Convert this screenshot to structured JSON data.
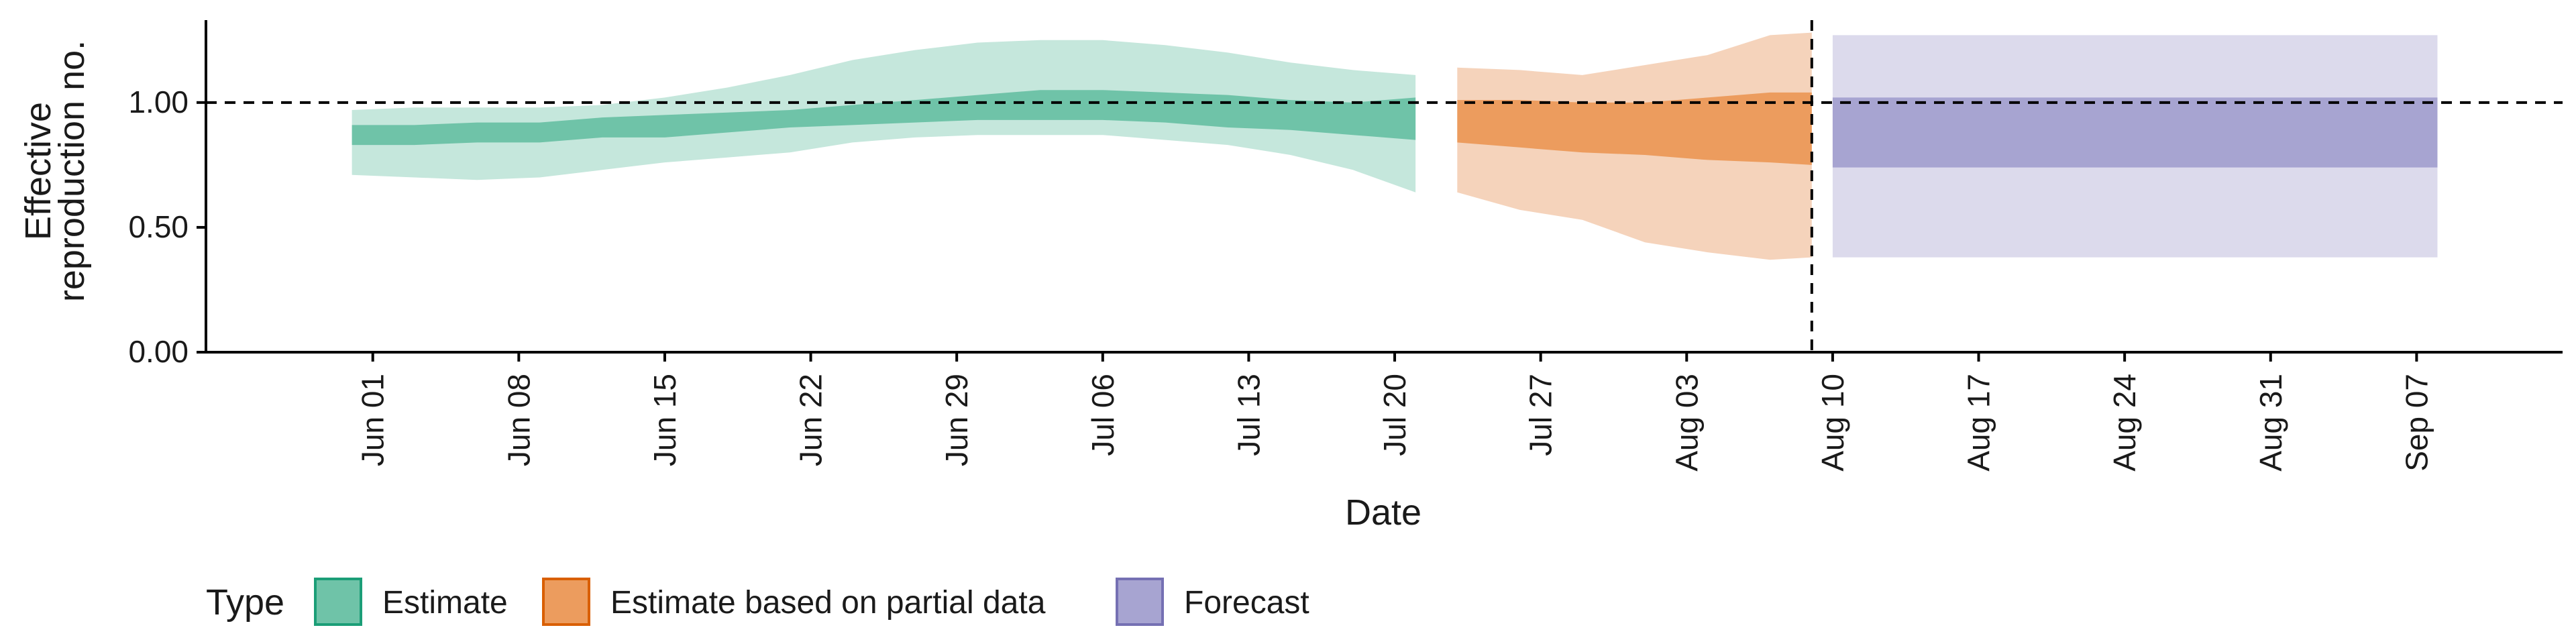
{
  "chart_data": {
    "type": "area",
    "xlabel": "Date",
    "ylabel_lines": [
      "Effective",
      "reproduction no."
    ],
    "ylim": [
      0,
      1.33
    ],
    "xlim": [
      "2020-05-24",
      "2020-09-14"
    ],
    "y_ticks": [
      {
        "value": 0.0,
        "label": "0.00"
      },
      {
        "value": 0.5,
        "label": "0.50"
      },
      {
        "value": 1.0,
        "label": "1.00"
      }
    ],
    "x_ticks": [
      {
        "date": "2020-06-01",
        "label": "Jun 01"
      },
      {
        "date": "2020-06-08",
        "label": "Jun 08"
      },
      {
        "date": "2020-06-15",
        "label": "Jun 15"
      },
      {
        "date": "2020-06-22",
        "label": "Jun 22"
      },
      {
        "date": "2020-06-29",
        "label": "Jun 29"
      },
      {
        "date": "2020-07-06",
        "label": "Jul 06"
      },
      {
        "date": "2020-07-13",
        "label": "Jul 13"
      },
      {
        "date": "2020-07-20",
        "label": "Jul 20"
      },
      {
        "date": "2020-07-27",
        "label": "Jul 27"
      },
      {
        "date": "2020-08-03",
        "label": "Aug 03"
      },
      {
        "date": "2020-08-10",
        "label": "Aug 10"
      },
      {
        "date": "2020-08-17",
        "label": "Aug 17"
      },
      {
        "date": "2020-08-24",
        "label": "Aug 24"
      },
      {
        "date": "2020-08-31",
        "label": "Aug 31"
      },
      {
        "date": "2020-09-07",
        "label": "Sep 07"
      }
    ],
    "reference_lines": [
      {
        "axis": "y",
        "value": 1.0,
        "style": "dashed",
        "color": "#000000"
      },
      {
        "axis": "x",
        "date": "2020-08-09",
        "style": "dashed",
        "color": "#000000"
      }
    ],
    "legend": {
      "title": "Type",
      "placement": "bottom-left",
      "items": [
        {
          "label": "Estimate",
          "fill": "#6fc3a8",
          "stroke": "#1b9e77"
        },
        {
          "label": "Estimate based on partial data",
          "fill": "#ec9c5e",
          "stroke": "#d95f02"
        },
        {
          "label": "Forecast",
          "fill": "#a7a4d1",
          "stroke": "#7570b3"
        }
      ]
    },
    "series": [
      {
        "name": "Estimate",
        "outer_color": "#c5e7dc",
        "inner_color": "#6fc3a8",
        "points": [
          {
            "x": "2020-05-31",
            "lo90": 0.71,
            "hi90": 0.97,
            "lo50": 0.83,
            "hi50": 0.91
          },
          {
            "x": "2020-06-03",
            "lo90": 0.7,
            "hi90": 0.98,
            "lo50": 0.83,
            "hi50": 0.91
          },
          {
            "x": "2020-06-06",
            "lo90": 0.69,
            "hi90": 0.98,
            "lo50": 0.84,
            "hi50": 0.92
          },
          {
            "x": "2020-06-09",
            "lo90": 0.7,
            "hi90": 0.98,
            "lo50": 0.84,
            "hi50": 0.92
          },
          {
            "x": "2020-06-12",
            "lo90": 0.73,
            "hi90": 0.99,
            "lo50": 0.86,
            "hi50": 0.94
          },
          {
            "x": "2020-06-15",
            "lo90": 0.76,
            "hi90": 1.02,
            "lo50": 0.86,
            "hi50": 0.95
          },
          {
            "x": "2020-06-18",
            "lo90": 0.78,
            "hi90": 1.06,
            "lo50": 0.88,
            "hi50": 0.96
          },
          {
            "x": "2020-06-21",
            "lo90": 0.8,
            "hi90": 1.11,
            "lo50": 0.9,
            "hi50": 0.97
          },
          {
            "x": "2020-06-24",
            "lo90": 0.84,
            "hi90": 1.17,
            "lo50": 0.91,
            "hi50": 0.99
          },
          {
            "x": "2020-06-27",
            "lo90": 0.86,
            "hi90": 1.21,
            "lo50": 0.92,
            "hi50": 1.01
          },
          {
            "x": "2020-06-30",
            "lo90": 0.87,
            "hi90": 1.24,
            "lo50": 0.93,
            "hi50": 1.03
          },
          {
            "x": "2020-07-03",
            "lo90": 0.87,
            "hi90": 1.25,
            "lo50": 0.93,
            "hi50": 1.05
          },
          {
            "x": "2020-07-06",
            "lo90": 0.87,
            "hi90": 1.25,
            "lo50": 0.93,
            "hi50": 1.05
          },
          {
            "x": "2020-07-09",
            "lo90": 0.85,
            "hi90": 1.23,
            "lo50": 0.92,
            "hi50": 1.04
          },
          {
            "x": "2020-07-12",
            "lo90": 0.83,
            "hi90": 1.2,
            "lo50": 0.9,
            "hi50": 1.03
          },
          {
            "x": "2020-07-15",
            "lo90": 0.79,
            "hi90": 1.16,
            "lo50": 0.89,
            "hi50": 1.01
          },
          {
            "x": "2020-07-18",
            "lo90": 0.73,
            "hi90": 1.13,
            "lo50": 0.87,
            "hi50": 1.0
          },
          {
            "x": "2020-07-21",
            "lo90": 0.64,
            "hi90": 1.11,
            "lo50": 0.85,
            "hi50": 1.02
          }
        ]
      },
      {
        "name": "Estimate based on partial data",
        "outer_color": "#f5d3bb",
        "inner_color": "#ec9c5e",
        "points": [
          {
            "x": "2020-07-23",
            "lo90": 0.64,
            "hi90": 1.14,
            "lo50": 0.84,
            "hi50": 1.01
          },
          {
            "x": "2020-07-26",
            "lo90": 0.57,
            "hi90": 1.13,
            "lo50": 0.82,
            "hi50": 1.01
          },
          {
            "x": "2020-07-29",
            "lo90": 0.53,
            "hi90": 1.11,
            "lo50": 0.8,
            "hi50": 1.0
          },
          {
            "x": "2020-08-01",
            "lo90": 0.44,
            "hi90": 1.15,
            "lo50": 0.79,
            "hi50": 1.0
          },
          {
            "x": "2020-08-04",
            "lo90": 0.4,
            "hi90": 1.19,
            "lo50": 0.77,
            "hi50": 1.02
          },
          {
            "x": "2020-08-07",
            "lo90": 0.37,
            "hi90": 1.27,
            "lo50": 0.76,
            "hi50": 1.04
          },
          {
            "x": "2020-08-09",
            "lo90": 0.38,
            "hi90": 1.28,
            "lo50": 0.75,
            "hi50": 1.04
          }
        ]
      },
      {
        "name": "Forecast",
        "outer_color": "#dcdaec",
        "inner_color": "#a7a4d1",
        "points": [
          {
            "x": "2020-08-10",
            "lo90": 0.38,
            "hi90": 1.27,
            "lo50": 0.74,
            "hi50": 1.02
          },
          {
            "x": "2020-09-08",
            "lo90": 0.38,
            "hi90": 1.27,
            "lo50": 0.74,
            "hi50": 1.02
          }
        ]
      }
    ]
  }
}
